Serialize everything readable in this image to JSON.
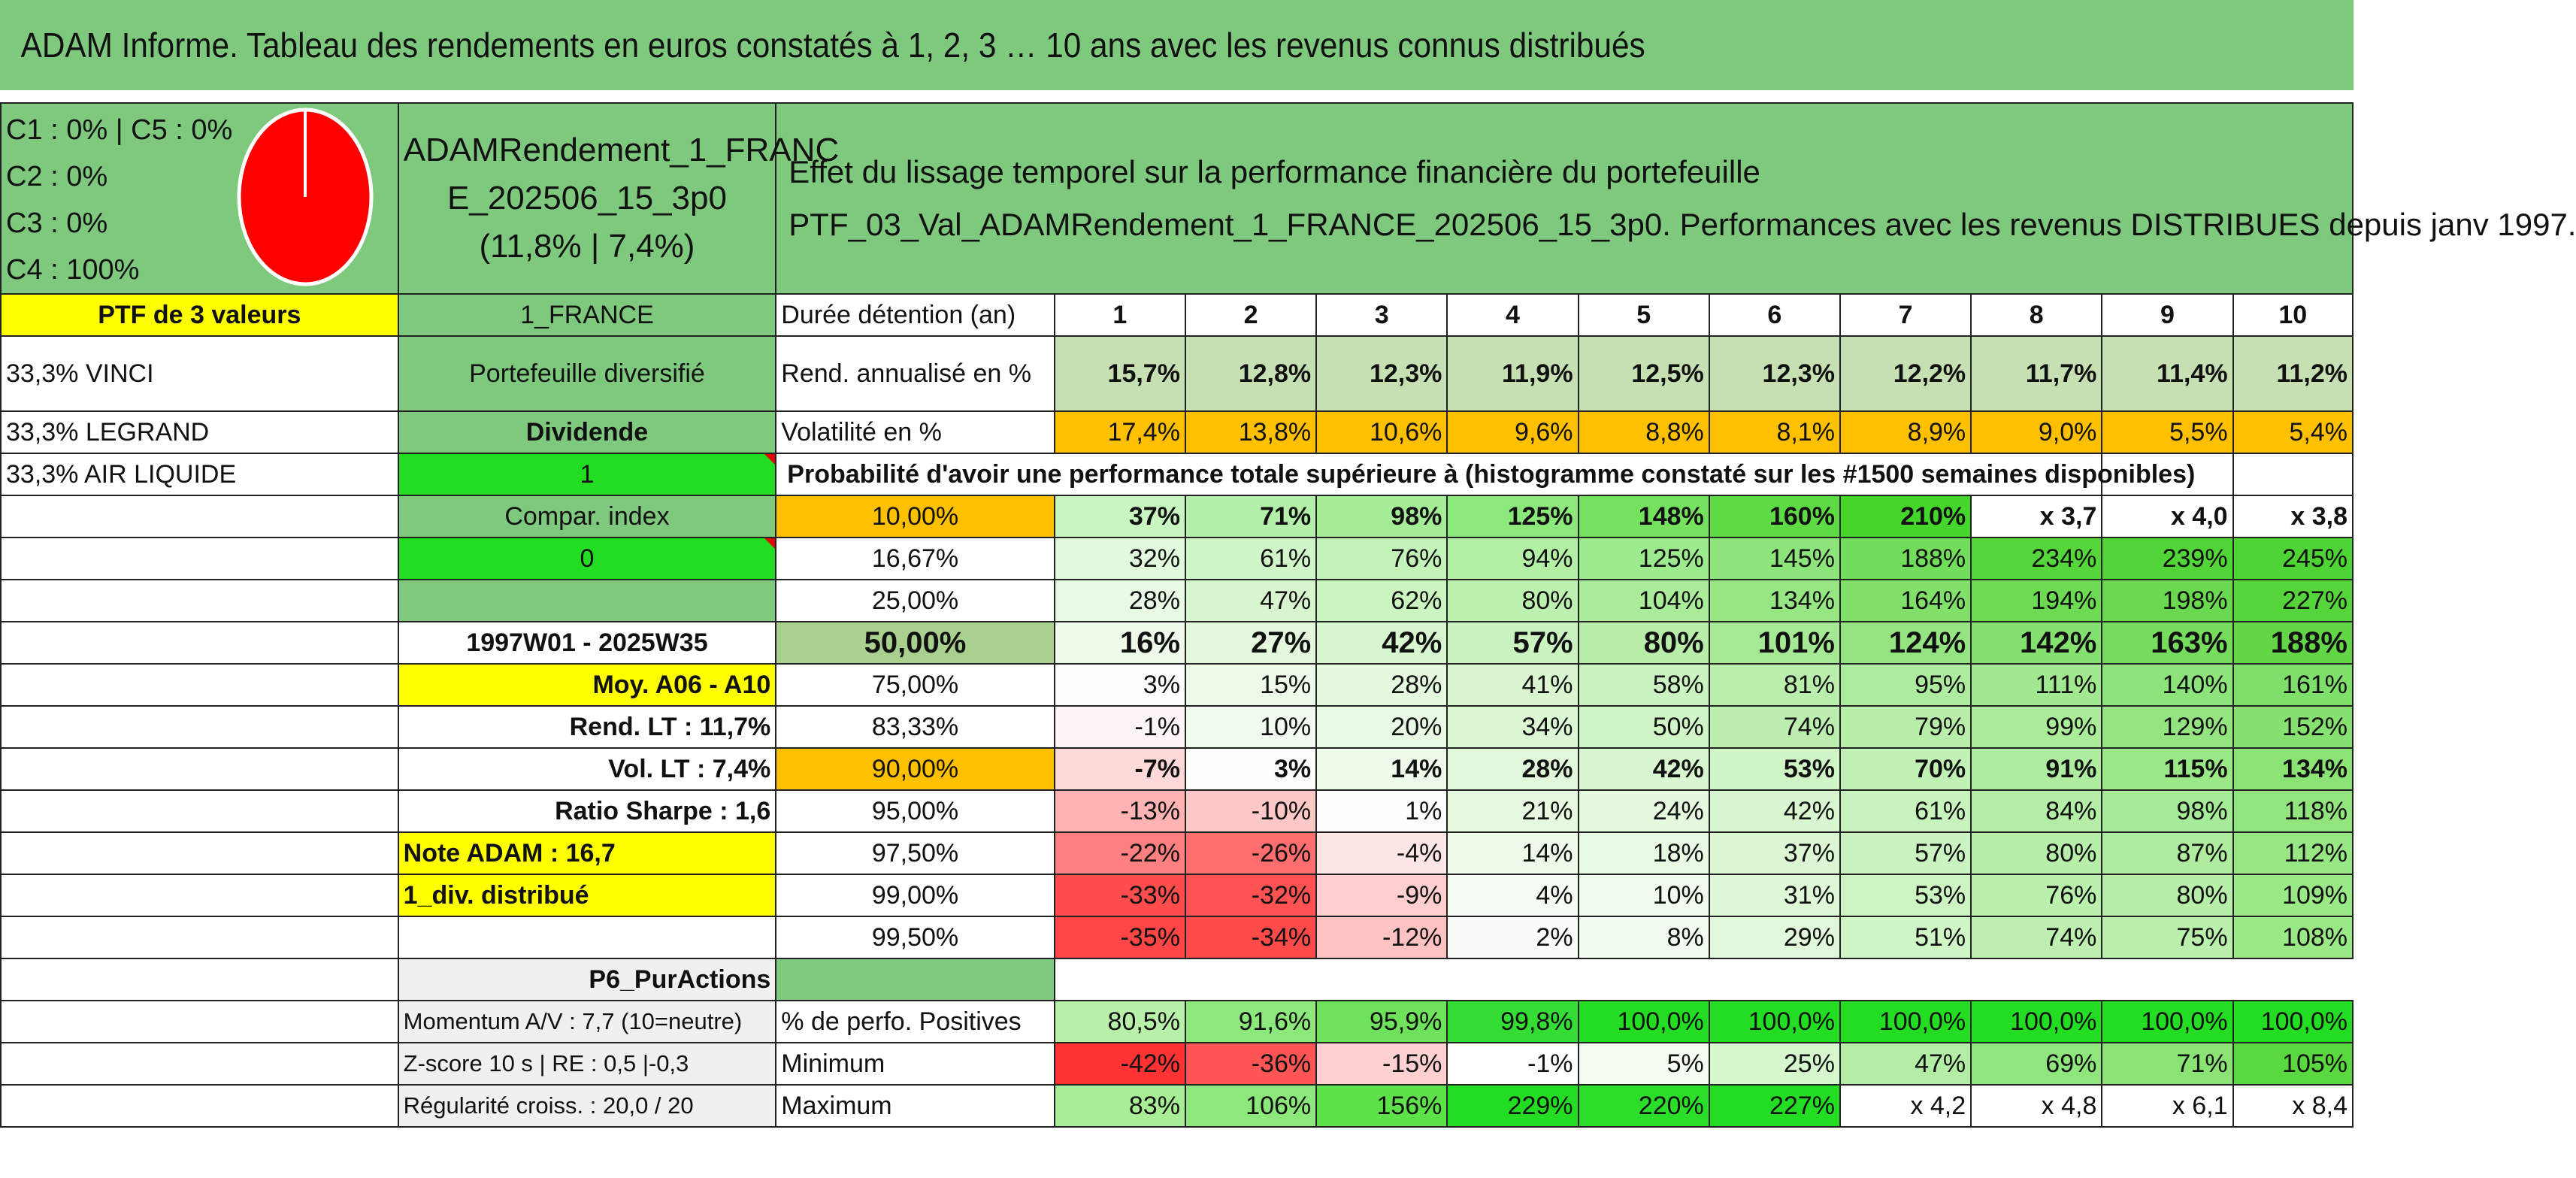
{
  "title": "ADAM Informe. Tableau des rendements en euros constatés à 1, 2, 3 … 10 ans avec les revenus connus distribués",
  "allocation": [
    "C1 : 0% | C5 : 0%",
    "C2 : 0%",
    "C3 : 0%",
    "C4 : 100%"
  ],
  "allocation_chart": {
    "type": "pie",
    "slices": [
      {
        "label": "C4",
        "value": 100,
        "color": "#ff0000"
      }
    ]
  },
  "strategy": {
    "line1": "ADAMRendement_1_FRANC",
    "line2": "E_202506_15_3p0",
    "line3": "(11,8% | 7,4%)"
  },
  "headline": {
    "line1": "Effet du lissage temporel sur la performance financière du portefeuille",
    "line2": "PTF_03_Val_ADAMRendement_1_FRANCE_202506_15_3p0. Performances avec les revenus DISTRIBUES depuis janv 1997."
  },
  "left": {
    "ptf": "PTF de 3 valeurs",
    "holdings": [
      "33,3% VINCI",
      "33,3% LEGRAND",
      "33,3% AIR LIQUIDE"
    ]
  },
  "side": {
    "universe": "1_FRANCE",
    "type": "Portefeuille diversifié",
    "income": "Dividende",
    "income_flag": "1",
    "compar": "Compar. index",
    "compar_flag": "0",
    "period": "1997W01 - 2025W35",
    "moy": "Moy. A06 - A10",
    "rend_lt": "Rend. LT : 11,7%",
    "vol_lt": "Vol. LT : 7,4%",
    "sharpe": "Ratio Sharpe : 1,6",
    "note": "Note ADAM : 16,7",
    "div": "1_div. distribué",
    "profile": "P6_PurActions",
    "momentum": "Momentum A/V : 7,7 (10=neutre)",
    "zscore": "Z-score 10 s | RE : 0,5 |-0,3",
    "regularite": "Régularité croiss. : 20,0 / 20"
  },
  "table": {
    "duration_label": "Durée détention (an)",
    "years": [
      "1",
      "2",
      "3",
      "4",
      "5",
      "6",
      "7",
      "8",
      "9",
      "10"
    ],
    "rend_label": "Rend. annualisé en %",
    "rend": [
      "15,7%",
      "12,8%",
      "12,3%",
      "11,9%",
      "12,5%",
      "12,3%",
      "12,2%",
      "11,7%",
      "11,4%",
      "11,2%"
    ],
    "vol_label": "Volatilité en %",
    "vol": [
      "17,4%",
      "13,8%",
      "10,6%",
      "9,6%",
      "8,8%",
      "8,1%",
      "8,9%",
      "9,0%",
      "5,5%",
      "5,4%"
    ],
    "proba_label": "Probabilité d'avoir une performance totale supérieure à (histogramme constaté sur les #1500 semaines disponibles)",
    "quantiles": [
      {
        "p": "10,00%",
        "v": [
          "37%",
          "71%",
          "98%",
          "125%",
          "148%",
          "160%",
          "210%",
          "x 3,7",
          "x 4,0",
          "x 3,8"
        ]
      },
      {
        "p": "16,67%",
        "v": [
          "32%",
          "61%",
          "76%",
          "94%",
          "125%",
          "145%",
          "188%",
          "234%",
          "239%",
          "245%"
        ]
      },
      {
        "p": "25,00%",
        "v": [
          "28%",
          "47%",
          "62%",
          "80%",
          "104%",
          "134%",
          "164%",
          "194%",
          "198%",
          "227%"
        ]
      },
      {
        "p": "50,00%",
        "v": [
          "16%",
          "27%",
          "42%",
          "57%",
          "80%",
          "101%",
          "124%",
          "142%",
          "163%",
          "188%"
        ]
      },
      {
        "p": "75,00%",
        "v": [
          "3%",
          "15%",
          "28%",
          "41%",
          "58%",
          "81%",
          "95%",
          "111%",
          "140%",
          "161%"
        ]
      },
      {
        "p": "83,33%",
        "v": [
          "-1%",
          "10%",
          "20%",
          "34%",
          "50%",
          "74%",
          "79%",
          "99%",
          "129%",
          "152%"
        ]
      },
      {
        "p": "90,00%",
        "v": [
          "-7%",
          "3%",
          "14%",
          "28%",
          "42%",
          "53%",
          "70%",
          "91%",
          "115%",
          "134%"
        ]
      },
      {
        "p": "95,00%",
        "v": [
          "-13%",
          "-10%",
          "1%",
          "21%",
          "24%",
          "42%",
          "61%",
          "84%",
          "98%",
          "118%"
        ]
      },
      {
        "p": "97,50%",
        "v": [
          "-22%",
          "-26%",
          "-4%",
          "14%",
          "18%",
          "37%",
          "57%",
          "80%",
          "87%",
          "112%"
        ]
      },
      {
        "p": "99,00%",
        "v": [
          "-33%",
          "-32%",
          "-9%",
          "4%",
          "10%",
          "31%",
          "53%",
          "76%",
          "80%",
          "109%"
        ]
      },
      {
        "p": "99,50%",
        "v": [
          "-35%",
          "-34%",
          "-12%",
          "2%",
          "8%",
          "29%",
          "51%",
          "74%",
          "75%",
          "108%"
        ]
      }
    ],
    "pos_label": "% de perfo. Positives",
    "pos": [
      "80,5%",
      "91,6%",
      "95,9%",
      "99,8%",
      "100,0%",
      "100,0%",
      "100,0%",
      "100,0%",
      "100,0%",
      "100,0%"
    ],
    "min_label": "Minimum",
    "min": [
      "-42%",
      "-36%",
      "-15%",
      "-1%",
      "5%",
      "25%",
      "47%",
      "69%",
      "71%",
      "105%"
    ],
    "max_label": "Maximum",
    "max": [
      "83%",
      "106%",
      "156%",
      "229%",
      "220%",
      "227%",
      "x 4,2",
      "x 4,8",
      "x 6,1",
      "x 8,4"
    ],
    "cell_colors": {
      "rend": [
        "#c6e0b4",
        "#c6e0b4",
        "#c6e0b4",
        "#c6e0b4",
        "#c6e0b4",
        "#c6e0b4",
        "#c6e0b4",
        "#c6e0b4",
        "#c6e0b4",
        "#c6e0b4"
      ],
      "vol": [
        "#ffc000",
        "#ffc000",
        "#ffc000",
        "#ffc000",
        "#ffc000",
        "#ffc000",
        "#ffc000",
        "#ffc000",
        "#ffc000",
        "#ffc000"
      ],
      "quantiles": [
        [
          "#c8f5c0",
          "#b5f0aa",
          "#a4ec96",
          "#8ce87a",
          "#74e25e",
          "#5edb44",
          "#44d62a",
          "#ffffff",
          "#ffffff",
          "#ffffff"
        ],
        [
          "#e2f9dd",
          "#d0f5c8",
          "#c4f3ba",
          "#b4efa6",
          "#9eea8e",
          "#8ce47a",
          "#72dd5a",
          "#55d63a",
          "#52d538",
          "#4ed434"
        ],
        [
          "#e8fae4",
          "#d7f6cf",
          "#cbf4c1",
          "#bdf1b0",
          "#aaec9a",
          "#96e784",
          "#80e06a",
          "#6cda52",
          "#6ad950",
          "#56d43c"
        ],
        [
          "#eefbeb",
          "#e3f8dd",
          "#d8f6d0",
          "#cbf3c1",
          "#b8eeaa",
          "#a5e994",
          "#94e581",
          "#85e16f",
          "#76dc5e",
          "#63d648"
        ],
        [
          "#fbfefb",
          "#eefbea",
          "#e4f9de",
          "#d9f6d1",
          "#cbf3c1",
          "#b9eeac",
          "#adeb9e",
          "#a2e891",
          "#8ce47a",
          "#7fdf6b"
        ],
        [
          "#fff5f5",
          "#f2fbef",
          "#e9fae4",
          "#dcf7d4",
          "#d0f5c7",
          "#bcefaf",
          "#b8eeaa",
          "#aaec9a",
          "#94e582",
          "#86e170"
        ],
        [
          "#ffd9d9",
          "#fbfefa",
          "#eefbea",
          "#e2f8db",
          "#d8f6d0",
          "#cff4c6",
          "#c1f1b5",
          "#aeec9f",
          "#9ae887",
          "#8ae374"
        ],
        [
          "#ffb3b3",
          "#ffc8c8",
          "#fcfffb",
          "#e8f9e2",
          "#e4f9de",
          "#d8f6d0",
          "#c8f3bd",
          "#b4eea6",
          "#a6eb97",
          "#92e57e"
        ],
        [
          "#ff8080",
          "#ff6e6e",
          "#ffe6e6",
          "#eefbea",
          "#e9fae4",
          "#dbf7d3",
          "#cbf3c1",
          "#b7eeaa",
          "#b0ec9f",
          "#98e684"
        ],
        [
          "#ff4d4d",
          "#ff5252",
          "#ffcfcf",
          "#f6fdf4",
          "#f0fbed",
          "#dff8d8",
          "#cef4c4",
          "#bbefad",
          "#b7eea9",
          "#9ae886"
        ],
        [
          "#ff4545",
          "#ff4a4a",
          "#ffc2c2",
          "#f8fdf7",
          "#f3fcf1",
          "#e1f8da",
          "#d0f5c6",
          "#bdefb0",
          "#bbefad",
          "#9be887"
        ]
      ],
      "pos": [
        "#b8f0aa",
        "#8ce87a",
        "#6ee25a",
        "#33dd33",
        "#22dd22",
        "#22dd22",
        "#22dd22",
        "#22dd22",
        "#22dd22",
        "#22dd22"
      ],
      "min": [
        "#ff3333",
        "#ff5555",
        "#ffd0d0",
        "#ffffff",
        "#f5fdf3",
        "#d6f6cd",
        "#b4eea6",
        "#8ee67c",
        "#8ae374",
        "#5ad840"
      ],
      "max": [
        "#a8ee96",
        "#8ce87a",
        "#5ee24a",
        "#22dd22",
        "#2ade2a",
        "#22dd22",
        "#ffffff",
        "#ffffff",
        "#ffffff",
        "#ffffff"
      ]
    }
  }
}
